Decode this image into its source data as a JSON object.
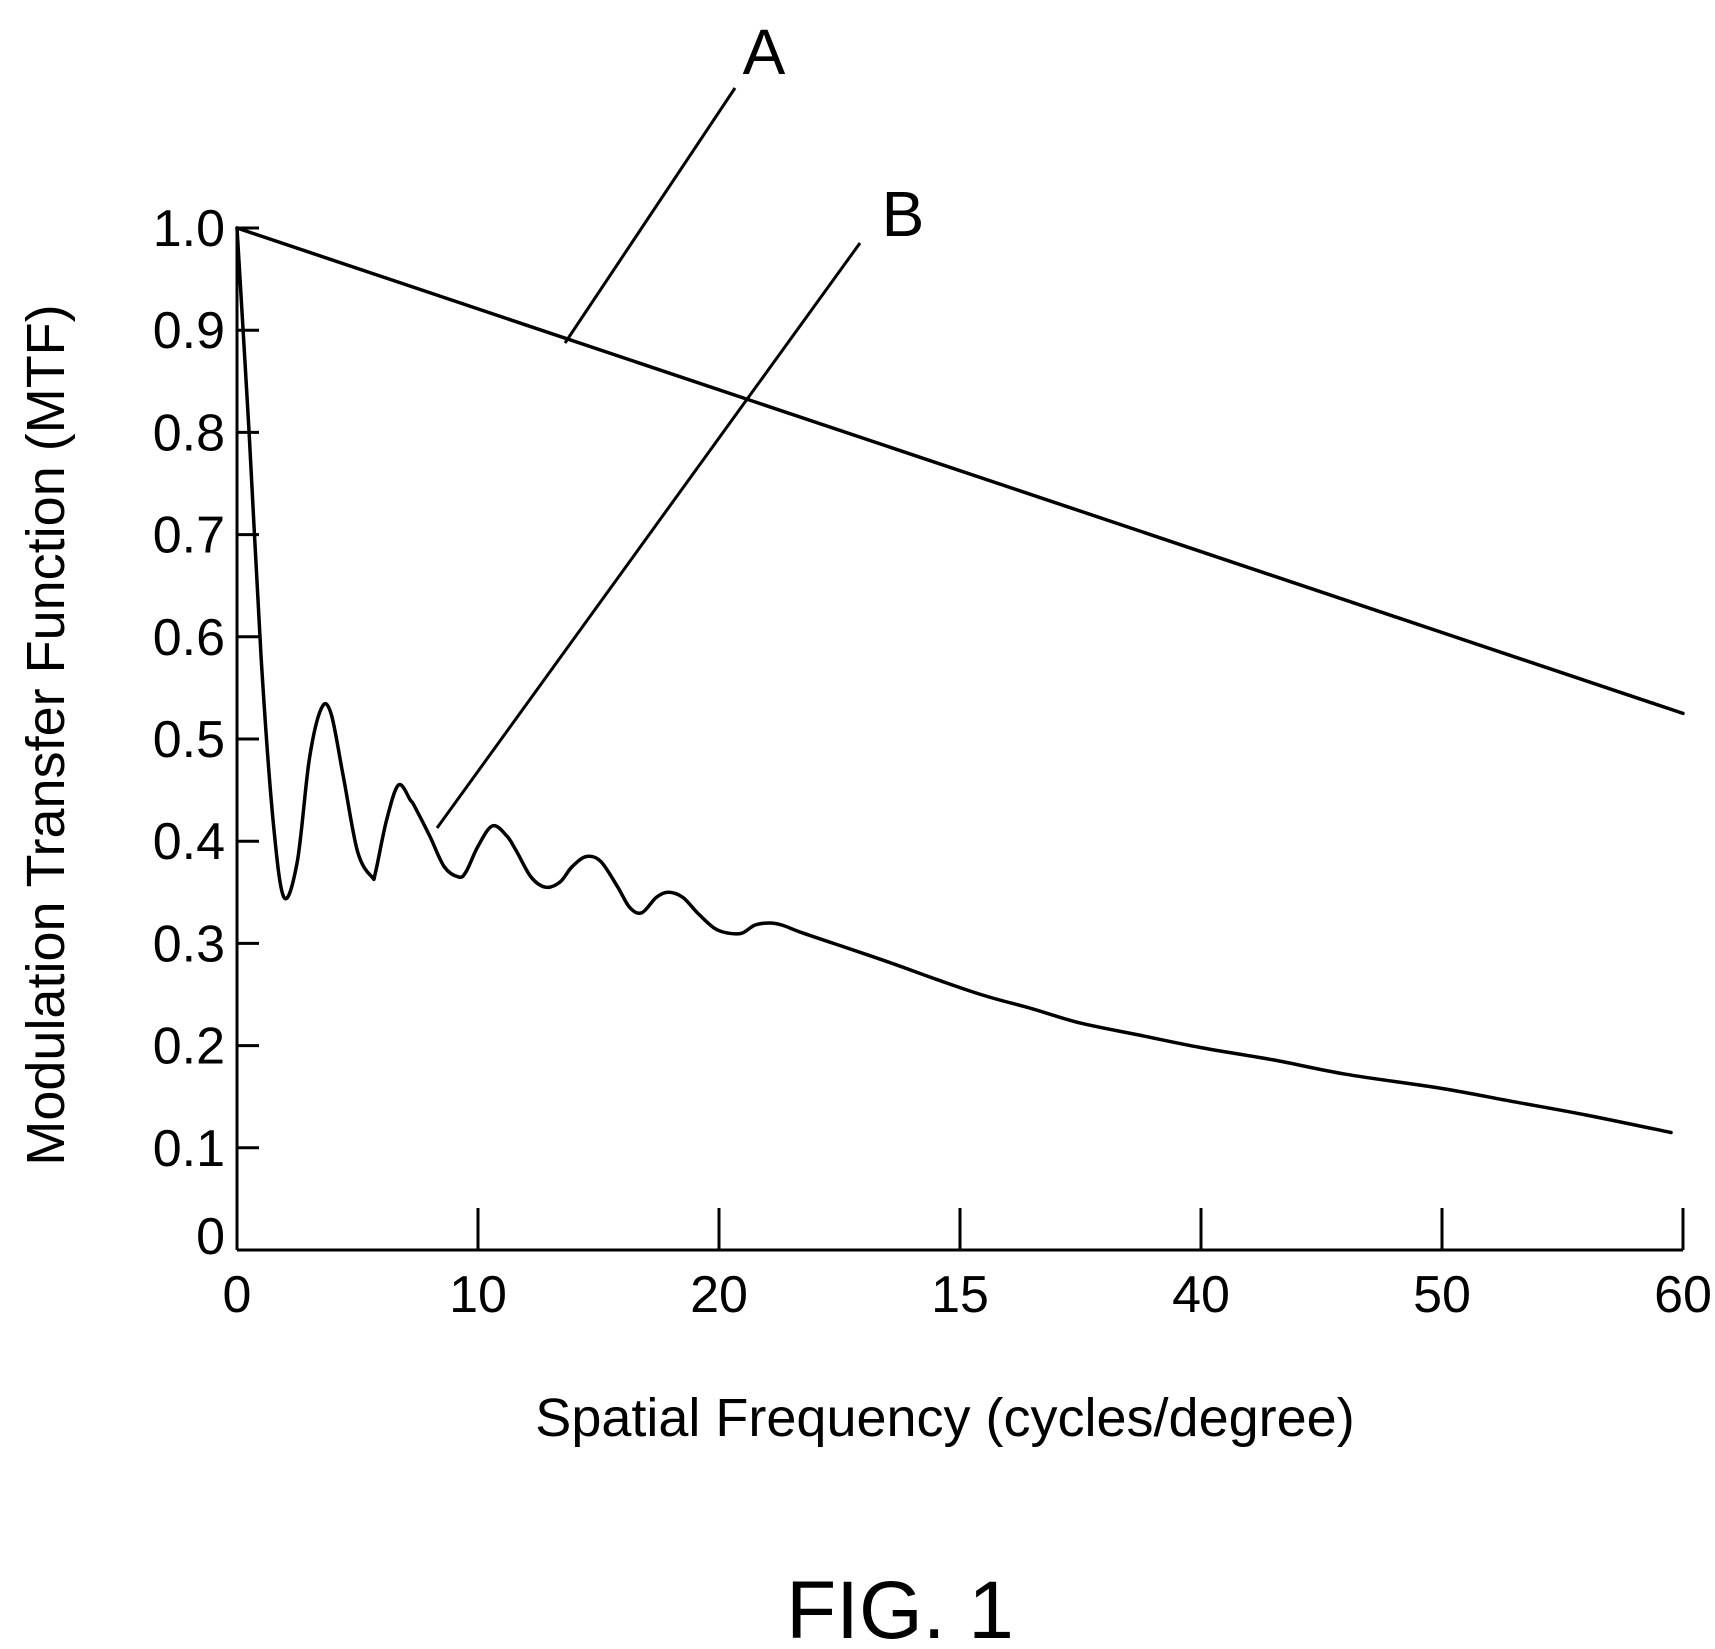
{
  "chart_data": {
    "type": "line",
    "xlabel": "Spatial Frequency (cycles/degree)",
    "ylabel": "Modulation Transfer Function (MTF)",
    "x_tick_labels": [
      "0",
      "10",
      "20",
      "15",
      "40",
      "50",
      "60"
    ],
    "y_tick_labels": [
      "0",
      "0.1",
      "0.2",
      "0.3",
      "0.4",
      "0.5",
      "0.6",
      "0.7",
      "0.8",
      "0.9",
      "1.0"
    ],
    "xlim": [
      0,
      60
    ],
    "ylim": [
      0,
      1.0
    ],
    "grid": false,
    "series": [
      {
        "name": "A",
        "x": [
          0,
          60
        ],
        "y": [
          1.0,
          0.525
        ]
      },
      {
        "name": "B",
        "x": [
          0,
          0.5,
          1.0,
          1.5,
          1.95,
          2.5,
          3.0,
          3.5,
          3.9,
          4.4,
          5.0,
          5.6,
          5.75,
          6.2,
          6.7,
          7.2,
          7.35,
          8.0,
          8.6,
          9.2,
          9.5,
          10.0,
          10.6,
          11.2,
          11.6,
          12.2,
          12.8,
          13.4,
          13.9,
          14.5,
          15.1,
          15.8,
          16.3,
          16.8,
          17.4,
          17.9,
          18.5,
          19.1,
          19.8,
          20.4,
          20.95,
          21.5,
          22.1,
          22.6,
          23.5,
          25,
          27,
          29,
          31,
          33,
          35,
          37.5,
          40,
          43,
          46,
          50,
          53,
          56,
          59.5
        ],
        "y": [
          1.0,
          0.8,
          0.58,
          0.42,
          0.345,
          0.38,
          0.48,
          0.53,
          0.525,
          0.465,
          0.39,
          0.365,
          0.37,
          0.42,
          0.455,
          0.44,
          0.435,
          0.405,
          0.375,
          0.365,
          0.37,
          0.395,
          0.415,
          0.405,
          0.39,
          0.365,
          0.355,
          0.36,
          0.375,
          0.385,
          0.38,
          0.355,
          0.335,
          0.33,
          0.345,
          0.35,
          0.345,
          0.33,
          0.315,
          0.31,
          0.31,
          0.318,
          0.32,
          0.318,
          0.31,
          0.298,
          0.282,
          0.265,
          0.249,
          0.236,
          0.222,
          0.21,
          0.198,
          0.186,
          0.172,
          0.158,
          0.145,
          0.132,
          0.115
        ]
      }
    ],
    "annotations": [
      {
        "label": "A",
        "target_x": 14,
        "target_y": 0.89
      },
      {
        "label": "B",
        "target_x": 8.5,
        "target_y": 0.415
      }
    ]
  },
  "caption": "FIG. 1"
}
